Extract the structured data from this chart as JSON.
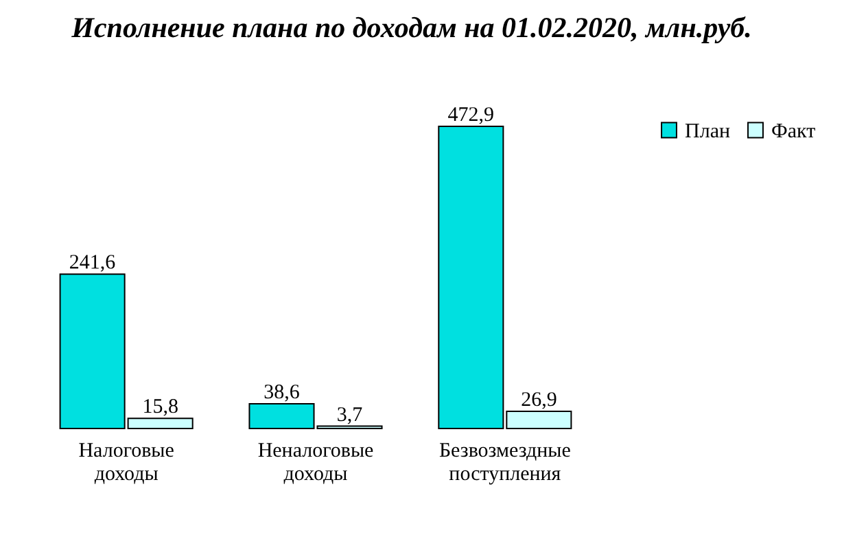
{
  "chart_data": {
    "type": "bar",
    "title": "Исполнение плана по доходам на 01.02.2020, млн.руб.",
    "categories": [
      "Налоговые доходы",
      "Неналоговые доходы",
      "Безвозмездные поступления"
    ],
    "series": [
      {
        "name": "План",
        "color": "#00e0e0",
        "values": [
          241.6,
          38.6,
          472.9
        ],
        "value_labels": [
          "241,6",
          "38,6",
          "472,9"
        ]
      },
      {
        "name": "Факт",
        "color": "#ccffff",
        "values": [
          15.8,
          3.7,
          26.9
        ],
        "value_labels": [
          "15,8",
          "3,7",
          "26,9"
        ]
      }
    ],
    "legend": "top right",
    "grid": false
  }
}
